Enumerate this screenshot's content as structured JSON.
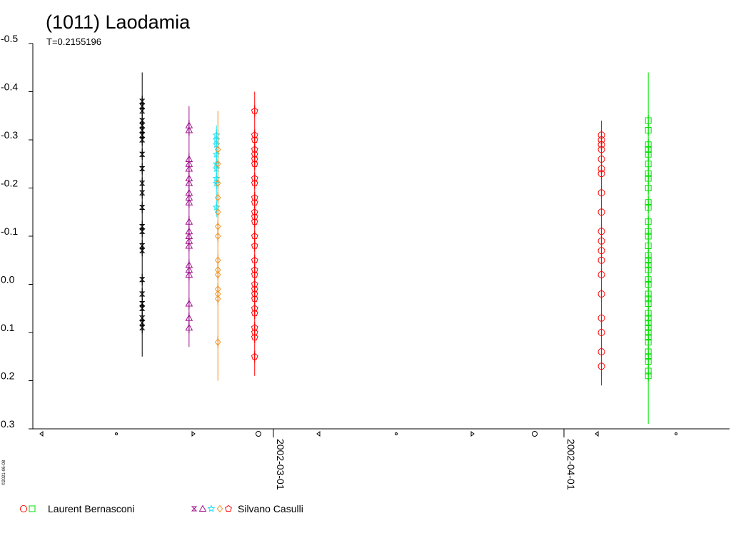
{
  "title": "(1011) Laodamia",
  "subtitle": "T=0.2155196",
  "credit": "©2021-06-08",
  "colors": {
    "bernasconi_red": "#ff0000",
    "bernasconi_green": "#00e000",
    "casulli_black": "#000000",
    "casulli_purple": "#a0108c",
    "casulli_cyan": "#20e0f0",
    "casulli_orange": "#f09020",
    "casulli_red": "#ff0000"
  },
  "legend": [
    {
      "label": "Laurent Bernasconi",
      "symbols": [
        "circle-icon",
        "square-icon"
      ],
      "colors": [
        "#ff0000",
        "#00e000"
      ]
    },
    {
      "label": "Silvano Casulli",
      "symbols": [
        "hourglass-icon",
        "triangle-icon",
        "star-icon",
        "diamond-icon",
        "pentagon-icon"
      ],
      "colors": [
        "#a0108c",
        "#a0108c",
        "#20e0f0",
        "#f09020",
        "#ff0000"
      ]
    }
  ],
  "chart_data": {
    "type": "scatter",
    "title": "(1011) Laodamia",
    "subtitle": "T=0.2155196",
    "xlabel": "",
    "ylabel": "",
    "x_ticks": [
      "2002-03-01",
      "2002-04-01"
    ],
    "y_ticks": [
      "-0.5",
      "-0.4",
      "-0.3",
      "-0.2",
      "-0.1",
      "0.0",
      "0.1",
      "0.2",
      "0.3"
    ],
    "ylim": [
      -0.5,
      0.3
    ],
    "y_inverted": true,
    "grid": false,
    "series": [
      {
        "name": "Silvano Casulli",
        "marker": "hourglass",
        "color": "#000000",
        "x": "2002-02-15",
        "y": [
          -0.38,
          -0.37,
          -0.36,
          -0.34,
          -0.33,
          -0.32,
          -0.31,
          -0.3,
          -0.27,
          -0.24,
          -0.21,
          -0.19,
          -0.16,
          -0.12,
          -0.11,
          -0.08,
          -0.07,
          -0.01,
          0.02,
          0.04,
          0.05,
          0.07,
          0.08,
          0.09
        ],
        "range": [
          -0.44,
          0.15
        ]
      },
      {
        "name": "Silvano Casulli",
        "marker": "triangle",
        "color": "#a0108c",
        "x": "2002-02-20",
        "y": [
          -0.33,
          -0.32,
          -0.26,
          -0.25,
          -0.24,
          -0.22,
          -0.21,
          -0.19,
          -0.18,
          -0.17,
          -0.13,
          -0.11,
          -0.1,
          -0.09,
          -0.08,
          -0.04,
          -0.03,
          -0.02,
          0.04,
          0.07,
          0.09
        ],
        "range": [
          -0.37,
          0.13
        ]
      },
      {
        "name": "Silvano Casulli",
        "marker": "star",
        "color": "#20e0f0",
        "x": "2002-02-23",
        "y": [
          -0.31,
          -0.3,
          -0.29,
          -0.27,
          -0.25,
          -0.24,
          -0.22,
          -0.21,
          -0.16
        ],
        "range": [
          -0.33,
          -0.14
        ]
      },
      {
        "name": "Silvano Casulli",
        "marker": "diamond",
        "color": "#f09020",
        "x": "2002-02-23",
        "y": [
          -0.28,
          -0.25,
          -0.21,
          -0.18,
          -0.15,
          -0.12,
          -0.1,
          -0.05,
          -0.03,
          -0.02,
          0.01,
          0.02,
          0.03,
          0.12
        ],
        "range": [
          -0.36,
          0.2
        ]
      },
      {
        "name": "Silvano Casulli",
        "marker": "pentagon",
        "color": "#ff0000",
        "x": "2002-02-27",
        "y": [
          -0.36,
          -0.31,
          -0.3,
          -0.28,
          -0.27,
          -0.26,
          -0.25,
          -0.22,
          -0.21,
          -0.18,
          -0.17,
          -0.15,
          -0.14,
          -0.13,
          -0.1,
          -0.08,
          -0.05,
          -0.03,
          -0.02,
          0.0,
          0.01,
          0.02,
          0.03,
          0.05,
          0.06,
          0.09,
          0.1,
          0.11,
          0.15
        ],
        "range": [
          -0.4,
          0.19
        ]
      },
      {
        "name": "Laurent Bernasconi",
        "marker": "circle",
        "color": "#ff0000",
        "x": "2002-04-05",
        "y": [
          -0.31,
          -0.3,
          -0.29,
          -0.28,
          -0.26,
          -0.24,
          -0.23,
          -0.19,
          -0.15,
          -0.11,
          -0.09,
          -0.07,
          -0.05,
          -0.02,
          0.02,
          0.07,
          0.1,
          0.14,
          0.17
        ],
        "range": [
          -0.34,
          0.21
        ]
      },
      {
        "name": "Laurent Bernasconi",
        "marker": "square",
        "color": "#00e000",
        "x": "2002-04-10",
        "y": [
          -0.34,
          -0.32,
          -0.29,
          -0.28,
          -0.27,
          -0.25,
          -0.23,
          -0.22,
          -0.2,
          -0.17,
          -0.16,
          -0.13,
          -0.11,
          -0.1,
          -0.08,
          -0.06,
          -0.05,
          -0.04,
          -0.03,
          -0.01,
          0.0,
          0.02,
          0.03,
          0.04,
          0.06,
          0.07,
          0.08,
          0.09,
          0.1,
          0.11,
          0.12,
          0.14,
          0.15,
          0.16,
          0.18,
          0.19
        ],
        "range": [
          -0.44,
          0.29
        ]
      }
    ],
    "phase_markers": [
      "triangle-left",
      "dot",
      "triangle-right",
      "circle",
      "triangle-left",
      "dot",
      "triangle-right",
      "circle",
      "triangle-left",
      "dot"
    ]
  }
}
